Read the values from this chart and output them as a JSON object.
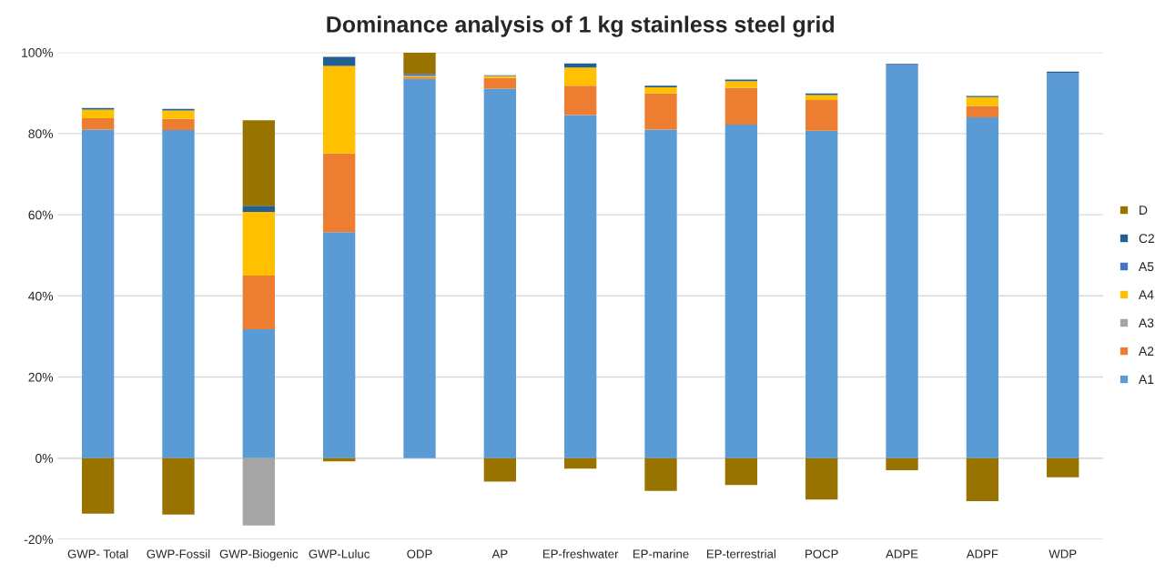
{
  "chart_data": {
    "type": "bar",
    "title": "Dominance analysis of 1 kg stainless steel grid",
    "stacked": true,
    "categories": [
      "GWP- Total",
      "GWP-Fossil",
      "GWP-Biogenic",
      "GWP-Luluc",
      "ODP",
      "AP",
      "EP-freshwater",
      "EP-marine",
      "EP-terrestrial",
      "POCP",
      "ADPE",
      "ADPF",
      "WDP"
    ],
    "series": [
      {
        "name": "A1",
        "color": "#5b9bd5",
        "values": [
          81.0,
          80.9,
          31.8,
          55.7,
          93.5,
          91.1,
          84.6,
          81.0,
          82.2,
          80.7,
          96.9,
          84.0,
          94.9
        ]
      },
      {
        "name": "A2",
        "color": "#ed7d31",
        "values": [
          2.8,
          2.7,
          13.2,
          19.4,
          0.4,
          2.6,
          7.2,
          8.9,
          9.1,
          7.6,
          null,
          2.8,
          null
        ]
      },
      {
        "name": "A3",
        "color": "#a5a5a5",
        "values": [
          null,
          null,
          -16.6,
          null,
          null,
          null,
          null,
          null,
          null,
          null,
          null,
          null,
          null
        ]
      },
      {
        "name": "A4",
        "color": "#ffc000",
        "values": [
          2.1,
          2.1,
          15.7,
          21.6,
          0.3,
          0.5,
          4.5,
          1.5,
          1.6,
          1.2,
          null,
          2.2,
          null
        ]
      },
      {
        "name": "A5",
        "color": "#4472c4",
        "values": [
          null,
          null,
          null,
          null,
          0.5,
          null,
          null,
          null,
          null,
          null,
          null,
          null,
          null
        ]
      },
      {
        "name": "C2",
        "color": "#255e91",
        "values": [
          0.4,
          0.4,
          1.5,
          2.2,
          null,
          0.2,
          1.0,
          0.4,
          0.4,
          0.4,
          0.3,
          0.3,
          0.4
        ]
      },
      {
        "name": "D",
        "color": "#997300",
        "values": [
          -13.7,
          -13.9,
          21.1,
          -0.8,
          5.3,
          -5.8,
          -2.6,
          -8.1,
          -6.6,
          -10.2,
          -3.0,
          -10.6,
          -4.7
        ]
      }
    ],
    "ylim": [
      -20,
      100
    ],
    "yticks": [
      {
        "value": -20,
        "label": "-20%"
      },
      {
        "value": 0,
        "label": "0%"
      },
      {
        "value": 20,
        "label": "20%"
      },
      {
        "value": 40,
        "label": "40%"
      },
      {
        "value": 60,
        "label": "60%"
      },
      {
        "value": 80,
        "label": "80%"
      },
      {
        "value": 100,
        "label": "100%"
      }
    ],
    "grid": "y",
    "legend": "right"
  }
}
